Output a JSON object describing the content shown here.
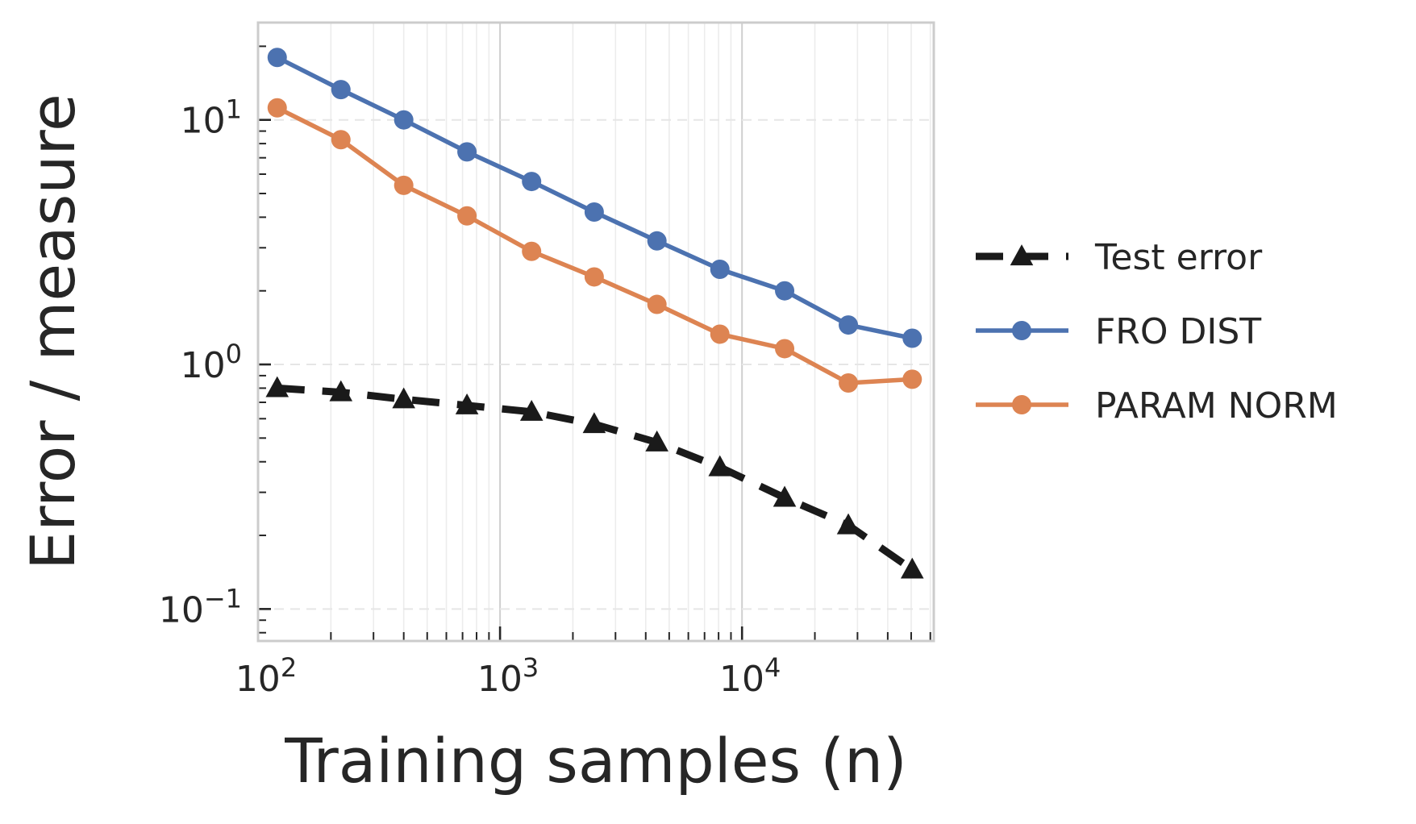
{
  "chart_data": {
    "type": "line",
    "xscale": "log",
    "yscale": "log",
    "xlabel": "Training samples (n)",
    "ylabel": "Error / measure",
    "xlim": [
      100,
      62000
    ],
    "ylim": [
      0.074,
      25
    ],
    "x": [
      120,
      220,
      400,
      730,
      1350,
      2450,
      4450,
      8100,
      15000,
      27500,
      50500
    ],
    "xticks": [
      {
        "value": 100,
        "base": "10",
        "exp": "2"
      },
      {
        "value": 1000,
        "base": "10",
        "exp": "3"
      },
      {
        "value": 10000,
        "base": "10",
        "exp": "4"
      }
    ],
    "yticks": [
      {
        "value": 10,
        "base": "10",
        "exp": "1"
      },
      {
        "value": 1,
        "base": "10",
        "exp": "0"
      },
      {
        "value": 0.1,
        "base": "10",
        "exp": "−1"
      }
    ],
    "series": [
      {
        "name": "Test error",
        "color": "#1a1a1a",
        "marker": "triangle",
        "dashed": true,
        "values": [
          0.8,
          0.77,
          0.72,
          0.68,
          0.64,
          0.57,
          0.48,
          0.38,
          0.285,
          0.22,
          0.145
        ]
      },
      {
        "name": "FRO DIST",
        "color": "#4c72b0",
        "marker": "circle",
        "dashed": false,
        "values": [
          18.0,
          13.3,
          10.0,
          7.4,
          5.6,
          4.2,
          3.2,
          2.45,
          2.0,
          1.45,
          1.28
        ]
      },
      {
        "name": "PARAM NORM",
        "color": "#dd8452",
        "marker": "circle",
        "dashed": false,
        "values": [
          11.2,
          8.3,
          5.4,
          4.05,
          2.9,
          2.28,
          1.76,
          1.33,
          1.16,
          0.84,
          0.87
        ]
      }
    ],
    "grid": true,
    "legend": "outside-right"
  }
}
